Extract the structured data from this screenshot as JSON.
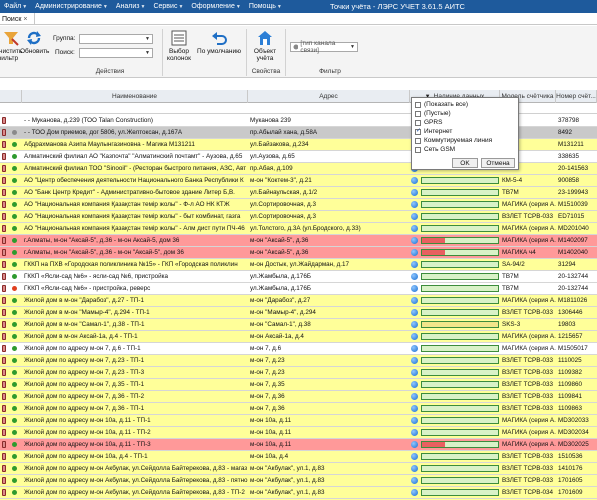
{
  "window": {
    "title": "Точки учёта - ЛЭРС УЧЕТ 3.61.5 АИТС"
  },
  "menu": [
    {
      "label": "Файл"
    },
    {
      "label": "Администрирование"
    },
    {
      "label": "Анализ"
    },
    {
      "label": "Сервис"
    },
    {
      "label": "Оформление"
    },
    {
      "label": "Помощь"
    }
  ],
  "tabs": [
    {
      "label": "Поиск"
    }
  ],
  "ribbon": {
    "clear_filter": "Очистить фильтр",
    "refresh": "Обновить",
    "group_label": "Группа:",
    "search_label": "Поиск:",
    "actions_group": "Действия",
    "column_picker": "Выбор колонок",
    "defaults": "По умолчанию",
    "object_point": "Объект учёта",
    "properties_group": "Свойства",
    "channel_placeholder": "[тип канала связи]",
    "filter_group": "Фильтр"
  },
  "grid": {
    "columns": [
      "Наименование",
      "Адрес",
      "Наличие данных",
      "Модель счётчика",
      "Номер счёт..."
    ],
    "rows": [
      {
        "name": "- - Муканова, д.239 (ТОО  Talan Construction)",
        "addr": "Муканова 239",
        "model": "",
        "num": "378798",
        "bg": "#ffffff",
        "dot": "",
        "bar": ""
      },
      {
        "name": "- - ТОО  Дом приемов, дог 5806, ул.Желтоксан, д.167А",
        "addr": "пр.Абылай хана, д.58А",
        "model": "",
        "num": "8492",
        "bg": "#c9c9c9",
        "dot": "#8a8a8a",
        "bar": ""
      },
      {
        "name": "Абдрахманова Азипа Маулынгазиновна - Магика М131211",
        "addr": "ул.Байзакова, д.234",
        "model": "",
        "num": "M131211",
        "bg": "#ffff99",
        "dot": "#2e9a2e",
        "bar": ""
      },
      {
        "name": "Алматинский филиал АО \"Казпочта\" \"Алматинский почтамт\" - Аузова, д.65",
        "addr": "ул.Аузова, д.65",
        "model": "",
        "num": "338635",
        "bg": "#ffffff",
        "dot": "#2e9a2e",
        "bar": ""
      },
      {
        "name": "Алматинский филиал ТОО \"Sinooil\" - (Ресторан быстрого питания, АЗС, Авт",
        "addr": "пр.Абая, д.109",
        "model": "",
        "num": "20-141563",
        "bg": "#ffff99",
        "dot": "#2e9a2e",
        "bar": ""
      },
      {
        "name": "АО  \"Центр обеспечения деятельности Национального Банка Республики К",
        "addr": "м-он \"Коктем-3\", д.21",
        "model": "КМ-5-4",
        "num": "900858",
        "bg": "#ffff99",
        "dot": "#2e9a2e",
        "bar": "#d9f2c7"
      },
      {
        "name": "АО \"Банк Центр Кредит\" - Административно-бытовое здание Литер Б,В.",
        "addr": "ул.Байнаульская, д.1/2",
        "model": "ТВ7М",
        "num": "23-199943",
        "bg": "#ffff99",
        "dot": "#2e9a2e",
        "bar": "#d9f2c7"
      },
      {
        "name": "АО \"Национальная компания Қазақстан темір жолы\" - Ф-л АО НК КТЖ",
        "addr": "ул.Сортировочная, д.3",
        "model": "МАГИКА (серия А...",
        "num": "M1510039",
        "bg": "#ffff99",
        "dot": "#2e9a2e",
        "bar": "#d9f2c7"
      },
      {
        "name": "АО \"Национальная компания Қазақстан темір жолы\" - быт комбинат, газга",
        "addr": "ул.Сортировочная, д.3",
        "model": "ВЗЛЕТ ТСРВ-033",
        "num": "ED71015",
        "bg": "#ffff99",
        "dot": "#2e9a2e",
        "bar": "#d9f2c7"
      },
      {
        "name": "АО \"Национальная компания Қазақстан темір жолы\" - Алм дист пути ПЧ-46",
        "addr": "ул.Толстого, д.3А (ул.Бродского, д.33)",
        "model": "МАГИКА (серия А...",
        "num": "MD201040",
        "bg": "#ffff99",
        "dot": "#2e9a2e",
        "bar": "#d9f2c7"
      },
      {
        "name": "г.Алматы, м-он \"Аксай-5\", д.36 - м-он Аксай-5, дом 36",
        "addr": "м-он \"Аксай-5\", д.36",
        "model": "МАГИКА (серия А...",
        "num": "M1402097",
        "bg": "#ff9999",
        "dot": "#2e9a2e",
        "bar": "#e86060"
      },
      {
        "name": "г.Алматы, м-он \"Аксай-5\", д.36 - м-он \"Аксай-5\", дом 36",
        "addr": "м-он \"Аксай-5\", д.36",
        "model": "МАГИКА ч4",
        "num": "M1402040",
        "bg": "#ff9999",
        "dot": "#2e9a2e",
        "bar": "#e86060"
      },
      {
        "name": "ГККП на ПХВ «Городская поликлиника №15» - ГКП «Городская поликлин",
        "addr": "м-он Достык, ул.Жайдарман, д.17",
        "model": "SA-94/2",
        "num": "31294",
        "bg": "#ffff99",
        "dot": "#2e9a2e",
        "bar": "#d9f2c7"
      },
      {
        "name": "ГККП «Ясли-сад №6» - ясли-сад №6, пристройка",
        "addr": "ул.Жамбыла, д.176Б",
        "model": "ТВ7М",
        "num": "20-132744",
        "bg": "#ffffff",
        "dot": "#2e9a2e",
        "bar": "#d9f2c7"
      },
      {
        "name": "ГККП «Ясли-сад №6» - пристройка, реверс",
        "addr": "ул.Жамбыла, д.176Б",
        "model": "ТВ7М",
        "num": "20-132744",
        "bg": "#ffffff",
        "dot": "#e04020",
        "bar": "#d9f2c7"
      },
      {
        "name": "Жилой дом в м-он \"Дарабоз\", д.27 - ТП-1",
        "addr": "м-он \"Дарабоз\", д.27",
        "model": "МАГИКА (серия А...",
        "num": "M1811026",
        "bg": "#ffff99",
        "dot": "#2e9a2e",
        "bar": "#d9f2c7"
      },
      {
        "name": "Жилой дом в м-он \"Мамыр-4\", д.294 - ТП-1",
        "addr": "м-он \"Мамыр-4\", д.294",
        "model": "ВЗЛЕТ ТСРВ-033",
        "num": "1306446",
        "bg": "#ffff99",
        "dot": "#2e9a2e",
        "bar": "#d9f2c7"
      },
      {
        "name": "Жилой дом в м-он \"Самал-1\", д.38 - ТП-1",
        "addr": "м-он \"Самал-1\", д.38",
        "model": "SKS-3",
        "num": "19803",
        "bg": "#ffff99",
        "dot": "#2e9a2e",
        "bar": "#f2e68a"
      },
      {
        "name": "Жилой дом в м-он Аксай-1а, д.4 - ТП-1",
        "addr": "м-он Аксай-1а, д.4",
        "model": "МАГИКА (серия А...",
        "num": "1215657",
        "bg": "#ffff99",
        "dot": "#2e9a2e",
        "bar": "#d9f2c7"
      },
      {
        "name": "Жилой дом по адресу м-он 7, д.6 - ТП-1",
        "addr": "м-он 7, д.6",
        "model": "МАГИКА (серия А...",
        "num": "M1505017",
        "bg": "#ffffff",
        "dot": "#2e9a2e",
        "bar": "#d9f2c7"
      },
      {
        "name": "Жилой дом по адресу м-он 7, д.23  - ТП-1",
        "addr": "м-он 7, д.23",
        "model": "ВЗЛЕТ ТСРВ-033",
        "num": "1110025",
        "bg": "#ffff99",
        "dot": "#2e9a2e",
        "bar": "#d9f2c7"
      },
      {
        "name": "Жилой дом по адресу м-он 7, д.23 - ТП-3",
        "addr": "м-он 7, д.23",
        "model": "ВЗЛЕТ ТСРВ-033",
        "num": "1109382",
        "bg": "#ffff99",
        "dot": "#2e9a2e",
        "bar": "#d9f2c7"
      },
      {
        "name": "Жилой дом по адресу м-он 7, д.35 - ТП-1",
        "addr": "м-он 7, д.35",
        "model": "ВЗЛЕТ ТСРВ-033",
        "num": "1109860",
        "bg": "#ffff99",
        "dot": "#2e9a2e",
        "bar": "#d9f2c7"
      },
      {
        "name": "Жилой дом по адресу м-он 7, д.36 - ТП-2",
        "addr": "м-он 7, д.36",
        "model": "ВЗЛЕТ ТСРВ-033",
        "num": "1109841",
        "bg": "#ffff99",
        "dot": "#2e9a2e",
        "bar": "#d9f2c7"
      },
      {
        "name": "Жилой дом по адресу м-он 7, д.36 - ТП-1",
        "addr": "м-он 7, д.36",
        "model": "ВЗЛЕТ ТСРВ-033",
        "num": "1109863",
        "bg": "#ffff99",
        "dot": "#2e9a2e",
        "bar": "#d9f2c7"
      },
      {
        "name": "Жилой дом по адресу м-он 10а, д.11 - ТП-1",
        "addr": "м-он 10а, д.11",
        "model": "МАГИКА (серия А...",
        "num": "MD302033",
        "bg": "#ffff99",
        "dot": "#2e9a2e",
        "bar": "#d9f2c7"
      },
      {
        "name": "Жилой дом по адресу м-он 10а, д.11 - ТП-2",
        "addr": "м-он 10а, д.11",
        "model": "МАГИКА (серия А...",
        "num": "MD302034",
        "bg": "#ffff99",
        "dot": "#2e9a2e",
        "bar": "#d9f2c7"
      },
      {
        "name": "Жилой дом по адресу м-он 10а, д.11 - ТП-3",
        "addr": "м-он 10а, д.11",
        "model": "МАГИКА (серия А...",
        "num": "MD302025",
        "bg": "#ff9999",
        "dot": "#2e9a2e",
        "bar": "#e86060"
      },
      {
        "name": "Жилой дом по адресу  м-он 10а, д.4 - ТП-1",
        "addr": "м-он 10а, д.4",
        "model": "ВЗЛЕТ ТСРВ-033",
        "num": "1510536",
        "bg": "#ffff99",
        "dot": "#2e9a2e",
        "bar": "#d9f2c7"
      },
      {
        "name": "Жилой дом по адресу м-он Акбулак, ул.Сейдолла Байтерекова, д.83 - магаз",
        "addr": "м-он \"Акбулак\", ул.1, д.83",
        "model": "ВЗЛЕТ ТСРВ-033",
        "num": "1410176",
        "bg": "#ffff99",
        "dot": "#2e9a2e",
        "bar": "#d9f2c7"
      },
      {
        "name": "Жилой дом по адресу м-он Акбулак, ул.Сейдолла Байтерекова, д.83 - пятно",
        "addr": "м-он \"Акбулак\", ул.1, д.83",
        "model": "ВЗЛЕТ ТСРВ-033",
        "num": "1701605",
        "bg": "#ffff99",
        "dot": "#2e9a2e",
        "bar": "#d9f2c7"
      },
      {
        "name": "Жилой дом по адресу м-он Акбулак, ул.Сейдолла Байтерекова, д.83 - ТП-2",
        "addr": "м-он \"Акбулак\", ул.1, д.83",
        "model": "ВЗЛЕТ ТСРВ-034",
        "num": "1701609",
        "bg": "#ffff99",
        "dot": "#2e9a2e",
        "bar": "#d9f2c7"
      },
      {
        "name": "Жилой дом по адресу м-он \"Зердели\", д.1/72 - ТП-1",
        "addr": "м-он \"Зердели\", д.1/72",
        "model": "ВКТ-7",
        "num": "205904",
        "bg": "#ffff99",
        "dot": "#2e9a2e",
        "bar": "#d9f2c7"
      },
      {
        "name": "Жилой дом по адресу м-он 5, д.13 - ТП-1",
        "addr": "м-он 5, д.13",
        "model": "МАГИКА (серия А...",
        "num": "M1412026",
        "bg": "#ff9999",
        "dot": "#2e9a2e",
        "bar": "#e86060"
      }
    ]
  },
  "popup": {
    "options": [
      {
        "label": "(Показать все)",
        "checked": false
      },
      {
        "label": "(Пустые)",
        "checked": false
      },
      {
        "label": "GPRS",
        "checked": false
      },
      {
        "label": "Интернет",
        "checked": true
      },
      {
        "label": "Коммутируемая линия",
        "checked": false
      },
      {
        "label": "Сеть GSM",
        "checked": false
      }
    ],
    "ok": "OK",
    "cancel": "Отмена"
  }
}
